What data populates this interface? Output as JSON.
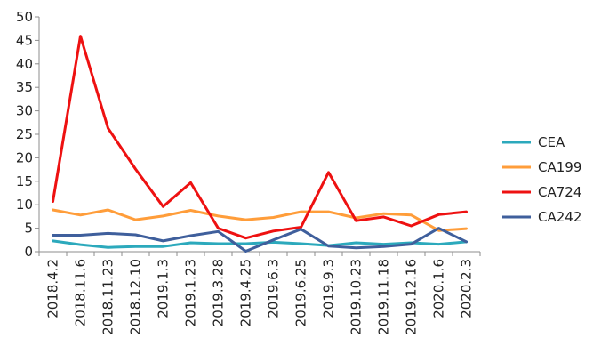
{
  "chart_data": {
    "type": "line",
    "title": "",
    "xlabel": "",
    "ylabel": "",
    "ylim": [
      0,
      50
    ],
    "yticks": [
      0,
      5,
      10,
      15,
      20,
      25,
      30,
      35,
      40,
      45,
      50
    ],
    "grid": false,
    "legend_position": "right",
    "categories": [
      "2018.4.2",
      "2018.11.6",
      "2018.11.23",
      "2018.12.10",
      "2019.1.3",
      "2019.1.23",
      "2019.3.28",
      "2019.4.25",
      "2019.6.3",
      "2019.6.25",
      "2019.9.3",
      "2019.10.23",
      "2019.11.18",
      "2019.12.16",
      "2020.1.6",
      "2020.2.3"
    ],
    "series": [
      {
        "name": "CEA",
        "color": "#2CA9BC",
        "values": [
          2.3,
          1.5,
          0.9,
          1.1,
          1.1,
          1.9,
          1.7,
          1.7,
          2.0,
          1.7,
          1.3,
          1.9,
          1.6,
          1.9,
          1.6,
          2.1
        ]
      },
      {
        "name": "CA199",
        "color": "#FF9D3A",
        "values": [
          8.9,
          7.8,
          8.9,
          6.8,
          7.6,
          8.8,
          7.6,
          6.8,
          7.3,
          8.5,
          8.5,
          7.2,
          8.1,
          7.8,
          4.5,
          4.9
        ]
      },
      {
        "name": "CA724",
        "color": "#EE1111",
        "values": [
          10.7,
          45.9,
          26.3,
          17.6,
          9.6,
          14.7,
          5.0,
          2.9,
          4.4,
          5.2,
          16.9,
          6.6,
          7.4,
          5.5,
          7.9,
          8.5
        ]
      },
      {
        "name": "CA242",
        "color": "#3F5F9C",
        "values": [
          3.5,
          3.5,
          3.9,
          3.6,
          2.3,
          3.4,
          4.3,
          0.1,
          2.5,
          4.8,
          1.2,
          0.8,
          1.1,
          1.6,
          5.0,
          2.1
        ]
      }
    ]
  }
}
